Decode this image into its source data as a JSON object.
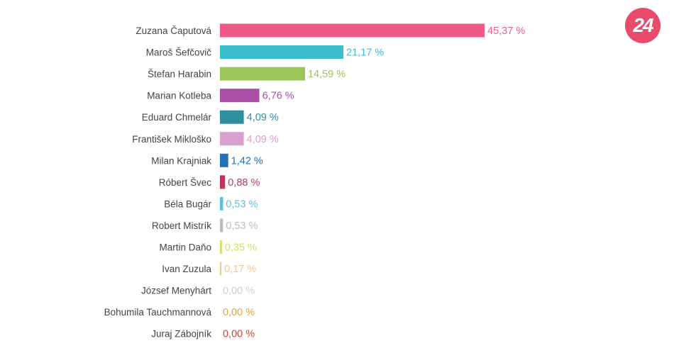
{
  "logo": {
    "text": "24",
    "color": "#e94b6a"
  },
  "chart_data": {
    "type": "bar",
    "orientation": "horizontal",
    "title": "",
    "xlabel": "",
    "ylabel": "",
    "xlim": [
      0,
      45.37
    ],
    "grid": false,
    "value_suffix": " %",
    "categories": [
      "Zuzana Čaputová",
      "Maroš Šefčovič",
      "Štefan Harabin",
      "Marian Kotleba",
      "Eduard Chmelár",
      "František Mikloško",
      "Milan Krajniak",
      "Róbert Švec",
      "Béla Bugár",
      "Robert Mistrík",
      "Martin Daňo",
      "Ivan Zuzula",
      "József Menyhárt",
      "Bohumila Tauchmannová",
      "Juraj Zábojník"
    ],
    "values": [
      45.37,
      21.17,
      14.59,
      6.76,
      4.09,
      4.09,
      1.42,
      0.88,
      0.53,
      0.53,
      0.35,
      0.17,
      0.0,
      0.0,
      0.0
    ],
    "value_labels": [
      "45,37 %",
      "21,17 %",
      "14,59 %",
      "6,76 %",
      "4,09 %",
      "4,09 %",
      "1,42 %",
      "0,88 %",
      "0,53 %",
      "0,53 %",
      "0,35 %",
      "0,17 %",
      "0,00 %",
      "0,00 %",
      "0,00 %"
    ],
    "colors": [
      "#ee5a87",
      "#3bbfcb",
      "#9cc55a",
      "#ab4fa6",
      "#2f8fa0",
      "#d9a0cd",
      "#1f72b8",
      "#b73a5c",
      "#5cc0e3",
      "#bdbdbd",
      "#d4e06a",
      "#f1c98f",
      "#cfcfcf",
      "#e8a53a",
      "#c9453b"
    ]
  }
}
